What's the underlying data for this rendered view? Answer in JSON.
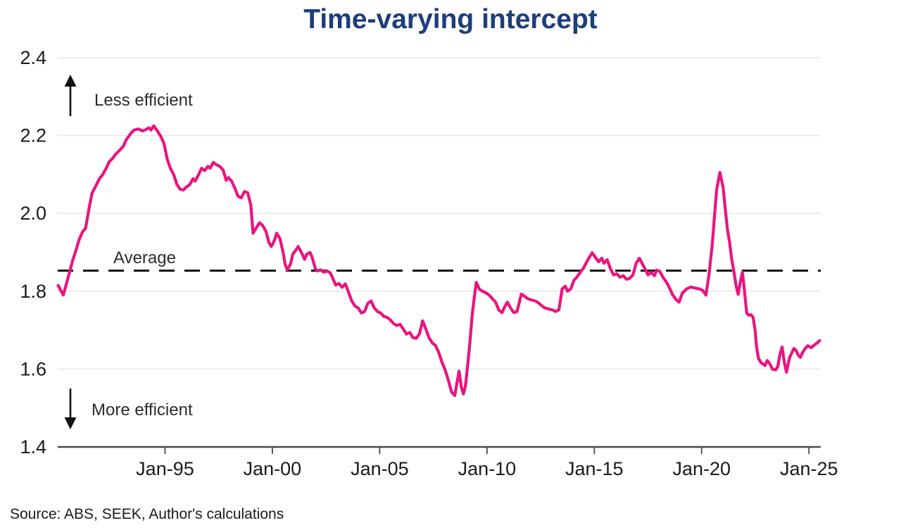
{
  "title": {
    "text": "Time-varying intercept",
    "color": "#1e3d7b"
  },
  "source": "Source: ABS, SEEK, Author's calculations",
  "annotations": {
    "up": "Less efficient",
    "down": "More efficient",
    "average": "Average"
  },
  "chart_data": {
    "type": "line",
    "title": "Time-varying intercept",
    "xlabel": "",
    "ylabel": "",
    "legend": "none",
    "grid": "horizontal",
    "line_color": "#e9147f",
    "average_value": 1.853,
    "ylim": [
      1.4,
      2.4
    ],
    "xlim": [
      1990.0,
      2025.55
    ],
    "y_ticks": [
      "2.4",
      "2.2",
      "2.0",
      "1.8",
      "1.6",
      "1.4"
    ],
    "x_ticks": [
      {
        "year": 1995,
        "label": "Jan-95"
      },
      {
        "year": 2000,
        "label": "Jan-00"
      },
      {
        "year": 2005,
        "label": "Jan-05"
      },
      {
        "year": 2010,
        "label": "Jan-10"
      },
      {
        "year": 2015,
        "label": "Jan-15"
      },
      {
        "year": 2020,
        "label": "Jan-20"
      },
      {
        "year": 2025,
        "label": "Jan-25"
      }
    ],
    "points": [
      [
        1990.02,
        1.815
      ],
      [
        1990.26,
        1.79
      ],
      [
        1990.5,
        1.838
      ],
      [
        1990.7,
        1.88
      ],
      [
        1990.85,
        1.905
      ],
      [
        1991.0,
        1.933
      ],
      [
        1991.15,
        1.952
      ],
      [
        1991.3,
        1.962
      ],
      [
        1991.45,
        2.01
      ],
      [
        1991.6,
        2.052
      ],
      [
        1991.75,
        2.068
      ],
      [
        1991.95,
        2.09
      ],
      [
        1992.1,
        2.1
      ],
      [
        1992.25,
        2.115
      ],
      [
        1992.4,
        2.133
      ],
      [
        1992.55,
        2.141
      ],
      [
        1992.7,
        2.152
      ],
      [
        1992.9,
        2.163
      ],
      [
        1993.05,
        2.172
      ],
      [
        1993.2,
        2.19
      ],
      [
        1993.4,
        2.205
      ],
      [
        1993.55,
        2.214
      ],
      [
        1993.75,
        2.217
      ],
      [
        1993.95,
        2.212
      ],
      [
        1994.1,
        2.215
      ],
      [
        1994.25,
        2.22
      ],
      [
        1994.35,
        2.214
      ],
      [
        1994.47,
        2.225
      ],
      [
        1994.63,
        2.213
      ],
      [
        1994.8,
        2.198
      ],
      [
        1994.95,
        2.18
      ],
      [
        1995.1,
        2.14
      ],
      [
        1995.25,
        2.116
      ],
      [
        1995.4,
        2.1
      ],
      [
        1995.55,
        2.075
      ],
      [
        1995.7,
        2.062
      ],
      [
        1995.85,
        2.06
      ],
      [
        1996.0,
        2.068
      ],
      [
        1996.15,
        2.074
      ],
      [
        1996.3,
        2.089
      ],
      [
        1996.4,
        2.083
      ],
      [
        1996.55,
        2.098
      ],
      [
        1996.7,
        2.116
      ],
      [
        1996.85,
        2.11
      ],
      [
        1997.0,
        2.121
      ],
      [
        1997.1,
        2.116
      ],
      [
        1997.25,
        2.131
      ],
      [
        1997.4,
        2.125
      ],
      [
        1997.55,
        2.121
      ],
      [
        1997.7,
        2.112
      ],
      [
        1997.85,
        2.085
      ],
      [
        1997.95,
        2.092
      ],
      [
        1998.1,
        2.083
      ],
      [
        1998.25,
        2.065
      ],
      [
        1998.4,
        2.044
      ],
      [
        1998.55,
        2.04
      ],
      [
        1998.7,
        2.056
      ],
      [
        1998.85,
        2.053
      ],
      [
        1999.0,
        2.021
      ],
      [
        1999.1,
        1.949
      ],
      [
        1999.25,
        1.963
      ],
      [
        1999.4,
        1.976
      ],
      [
        1999.55,
        1.969
      ],
      [
        1999.7,
        1.954
      ],
      [
        1999.85,
        1.924
      ],
      [
        1999.95,
        1.915
      ],
      [
        2000.1,
        1.931
      ],
      [
        2000.2,
        1.949
      ],
      [
        2000.35,
        1.936
      ],
      [
        2000.5,
        1.9
      ],
      [
        2000.6,
        1.868
      ],
      [
        2000.7,
        1.855
      ],
      [
        2000.85,
        1.87
      ],
      [
        2000.95,
        1.895
      ],
      [
        2001.1,
        1.906
      ],
      [
        2001.2,
        1.915
      ],
      [
        2001.35,
        1.9
      ],
      [
        2001.5,
        1.882
      ],
      [
        2001.6,
        1.895
      ],
      [
        2001.75,
        1.9
      ],
      [
        2001.85,
        1.888
      ],
      [
        2002.0,
        1.859
      ],
      [
        2002.1,
        1.852
      ],
      [
        2002.25,
        1.855
      ],
      [
        2002.4,
        1.849
      ],
      [
        2002.55,
        1.852
      ],
      [
        2002.7,
        1.847
      ],
      [
        2002.85,
        1.829
      ],
      [
        2002.95,
        1.816
      ],
      [
        2003.1,
        1.82
      ],
      [
        2003.25,
        1.81
      ],
      [
        2003.4,
        1.819
      ],
      [
        2003.5,
        1.805
      ],
      [
        2003.7,
        1.775
      ],
      [
        2003.85,
        1.762
      ],
      [
        2004.0,
        1.757
      ],
      [
        2004.15,
        1.744
      ],
      [
        2004.3,
        1.748
      ],
      [
        2004.45,
        1.769
      ],
      [
        2004.6,
        1.775
      ],
      [
        2004.75,
        1.757
      ],
      [
        2004.9,
        1.748
      ],
      [
        2005.05,
        1.744
      ],
      [
        2005.2,
        1.735
      ],
      [
        2005.35,
        1.733
      ],
      [
        2005.5,
        1.726
      ],
      [
        2005.65,
        1.717
      ],
      [
        2005.8,
        1.712
      ],
      [
        2005.95,
        1.715
      ],
      [
        2006.1,
        1.703
      ],
      [
        2006.25,
        1.69
      ],
      [
        2006.4,
        1.694
      ],
      [
        2006.55,
        1.681
      ],
      [
        2006.7,
        1.679
      ],
      [
        2006.85,
        1.69
      ],
      [
        2007.0,
        1.724
      ],
      [
        2007.15,
        1.703
      ],
      [
        2007.3,
        1.681
      ],
      [
        2007.45,
        1.667
      ],
      [
        2007.6,
        1.661
      ],
      [
        2007.75,
        1.643
      ],
      [
        2007.9,
        1.618
      ],
      [
        2008.05,
        1.598
      ],
      [
        2008.2,
        1.571
      ],
      [
        2008.35,
        1.541
      ],
      [
        2008.5,
        1.532
      ],
      [
        2008.6,
        1.565
      ],
      [
        2008.7,
        1.595
      ],
      [
        2008.8,
        1.554
      ],
      [
        2008.9,
        1.536
      ],
      [
        2009.0,
        1.559
      ],
      [
        2009.1,
        1.61
      ],
      [
        2009.2,
        1.667
      ],
      [
        2009.3,
        1.733
      ],
      [
        2009.4,
        1.78
      ],
      [
        2009.5,
        1.823
      ],
      [
        2009.65,
        1.805
      ],
      [
        2009.8,
        1.8
      ],
      [
        2009.95,
        1.796
      ],
      [
        2010.1,
        1.79
      ],
      [
        2010.25,
        1.781
      ],
      [
        2010.4,
        1.772
      ],
      [
        2010.55,
        1.752
      ],
      [
        2010.7,
        1.745
      ],
      [
        2010.85,
        1.763
      ],
      [
        2010.95,
        1.772
      ],
      [
        2011.1,
        1.757
      ],
      [
        2011.25,
        1.745
      ],
      [
        2011.4,
        1.748
      ],
      [
        2011.5,
        1.77
      ],
      [
        2011.6,
        1.793
      ],
      [
        2011.75,
        1.787
      ],
      [
        2011.9,
        1.781
      ],
      [
        2012.05,
        1.778
      ],
      [
        2012.25,
        1.775
      ],
      [
        2012.4,
        1.77
      ],
      [
        2012.55,
        1.763
      ],
      [
        2012.7,
        1.757
      ],
      [
        2012.9,
        1.754
      ],
      [
        2013.05,
        1.752
      ],
      [
        2013.2,
        1.748
      ],
      [
        2013.35,
        1.752
      ],
      [
        2013.5,
        1.806
      ],
      [
        2013.65,
        1.813
      ],
      [
        2013.75,
        1.8
      ],
      [
        2013.9,
        1.806
      ],
      [
        2014.05,
        1.828
      ],
      [
        2014.2,
        1.837
      ],
      [
        2014.35,
        1.849
      ],
      [
        2014.5,
        1.86
      ],
      [
        2014.7,
        1.881
      ],
      [
        2014.9,
        1.899
      ],
      [
        2015.05,
        1.887
      ],
      [
        2015.2,
        1.876
      ],
      [
        2015.35,
        1.885
      ],
      [
        2015.45,
        1.872
      ],
      [
        2015.6,
        1.881
      ],
      [
        2015.75,
        1.858
      ],
      [
        2015.9,
        1.842
      ],
      [
        2016.05,
        1.845
      ],
      [
        2016.2,
        1.836
      ],
      [
        2016.35,
        1.84
      ],
      [
        2016.5,
        1.831
      ],
      [
        2016.65,
        1.833
      ],
      [
        2016.8,
        1.842
      ],
      [
        2016.95,
        1.872
      ],
      [
        2017.1,
        1.885
      ],
      [
        2017.25,
        1.869
      ],
      [
        2017.4,
        1.854
      ],
      [
        2017.5,
        1.842
      ],
      [
        2017.65,
        1.849
      ],
      [
        2017.8,
        1.84
      ],
      [
        2017.9,
        1.854
      ],
      [
        2018.05,
        1.851
      ],
      [
        2018.2,
        1.836
      ],
      [
        2018.35,
        1.824
      ],
      [
        2018.5,
        1.809
      ],
      [
        2018.65,
        1.791
      ],
      [
        2018.8,
        1.779
      ],
      [
        2018.95,
        1.772
      ],
      [
        2019.1,
        1.795
      ],
      [
        2019.3,
        1.806
      ],
      [
        2019.5,
        1.811
      ],
      [
        2019.7,
        1.808
      ],
      [
        2019.9,
        1.806
      ],
      [
        2020.05,
        1.802
      ],
      [
        2020.2,
        1.79
      ],
      [
        2020.35,
        1.845
      ],
      [
        2020.5,
        1.923
      ],
      [
        2020.6,
        1.995
      ],
      [
        2020.7,
        2.061
      ],
      [
        2020.85,
        2.105
      ],
      [
        2021.0,
        2.067
      ],
      [
        2021.1,
        2.013
      ],
      [
        2021.2,
        1.959
      ],
      [
        2021.3,
        1.927
      ],
      [
        2021.4,
        1.882
      ],
      [
        2021.5,
        1.852
      ],
      [
        2021.6,
        1.816
      ],
      [
        2021.7,
        1.792
      ],
      [
        2021.8,
        1.823
      ],
      [
        2021.9,
        1.849
      ],
      [
        2022.0,
        1.798
      ],
      [
        2022.1,
        1.744
      ],
      [
        2022.2,
        1.738
      ],
      [
        2022.3,
        1.74
      ],
      [
        2022.4,
        1.733
      ],
      [
        2022.5,
        1.697
      ],
      [
        2022.55,
        1.661
      ],
      [
        2022.65,
        1.627
      ],
      [
        2022.75,
        1.618
      ],
      [
        2022.85,
        1.613
      ],
      [
        2022.95,
        1.609
      ],
      [
        2023.05,
        1.622
      ],
      [
        2023.15,
        1.616
      ],
      [
        2023.3,
        1.6
      ],
      [
        2023.45,
        1.598
      ],
      [
        2023.55,
        1.607
      ],
      [
        2023.65,
        1.639
      ],
      [
        2023.75,
        1.657
      ],
      [
        2023.85,
        1.618
      ],
      [
        2023.95,
        1.592
      ],
      [
        2024.1,
        1.63
      ],
      [
        2024.2,
        1.642
      ],
      [
        2024.3,
        1.653
      ],
      [
        2024.4,
        1.648
      ],
      [
        2024.5,
        1.636
      ],
      [
        2024.6,
        1.63
      ],
      [
        2024.7,
        1.642
      ],
      [
        2024.8,
        1.651
      ],
      [
        2024.95,
        1.66
      ],
      [
        2025.1,
        1.655
      ],
      [
        2025.25,
        1.662
      ],
      [
        2025.4,
        1.668
      ],
      [
        2025.5,
        1.673
      ]
    ]
  }
}
